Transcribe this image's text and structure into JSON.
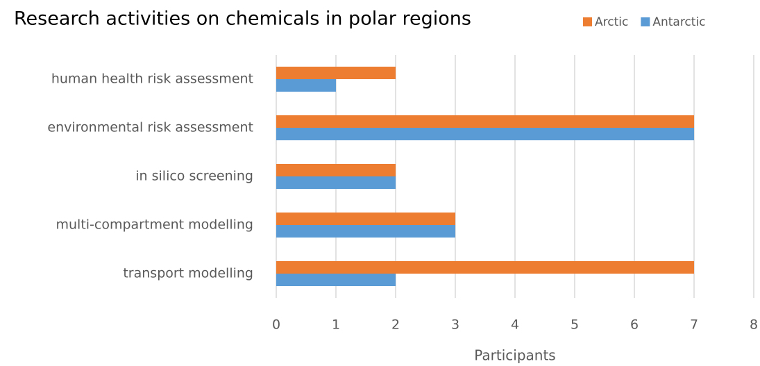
{
  "chart_data": {
    "type": "bar",
    "orientation": "horizontal",
    "title": "Research activities on chemicals in polar regions",
    "x_label": "Participants",
    "categories": [
      "human health risk assessment",
      "environmental risk assessment",
      "in silico screening",
      "multi-compartment modelling",
      "transport modelling"
    ],
    "series": [
      {
        "name": "Arctic",
        "color": "#ED7D31",
        "values": [
          2,
          7,
          2,
          3,
          7
        ]
      },
      {
        "name": "Antarctic",
        "color": "#5B9BD5",
        "values": [
          1,
          7,
          2,
          3,
          2
        ]
      }
    ],
    "xlim": [
      0,
      8
    ],
    "xticks": [
      0,
      1,
      2,
      3,
      4,
      5,
      6,
      7,
      8
    ],
    "grid": true,
    "legend": "top-right"
  }
}
